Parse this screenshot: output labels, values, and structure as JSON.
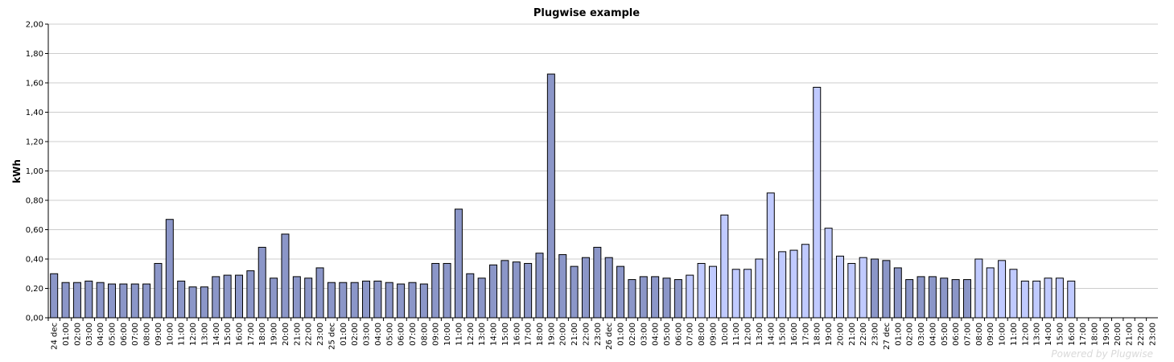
{
  "chart_data": {
    "type": "bar",
    "title": "Plugwise example",
    "xlabel": "",
    "ylabel": "kWh",
    "ylim": [
      0,
      2
    ],
    "yticks": [
      "0,00",
      "0,20",
      "0,40",
      "0,60",
      "0,80",
      "1,00",
      "1,20",
      "1,40",
      "1,60",
      "1,80",
      "2,00"
    ],
    "grid": true,
    "watermark": "Powered by Plugwise",
    "colors": {
      "dark": "#8b96c8",
      "light": "#c0caff",
      "outline": "#000000",
      "grid": "#cccccc"
    },
    "categories": [
      "24 dec",
      "01:00",
      "02:00",
      "03:00",
      "04:00",
      "05:00",
      "06:00",
      "07:00",
      "08:00",
      "09:00",
      "10:00",
      "11:00",
      "12:00",
      "13:00",
      "14:00",
      "15:00",
      "16:00",
      "17:00",
      "18:00",
      "19:00",
      "20:00",
      "21:00",
      "22:00",
      "23:00",
      "25 dec",
      "01:00",
      "02:00",
      "03:00",
      "04:00",
      "05:00",
      "06:00",
      "07:00",
      "08:00",
      "09:00",
      "10:00",
      "11:00",
      "12:00",
      "13:00",
      "14:00",
      "15:00",
      "16:00",
      "17:00",
      "18:00",
      "19:00",
      "20:00",
      "21:00",
      "22:00",
      "23:00",
      "26 dec",
      "01:00",
      "02:00",
      "03:00",
      "04:00",
      "05:00",
      "06:00",
      "07:00",
      "08:00",
      "09:00",
      "10:00",
      "11:00",
      "12:00",
      "13:00",
      "14:00",
      "15:00",
      "16:00",
      "17:00",
      "18:00",
      "19:00",
      "20:00",
      "21:00",
      "22:00",
      "23:00",
      "27 dec",
      "01:00",
      "02:00",
      "03:00",
      "04:00",
      "05:00",
      "06:00",
      "07:00",
      "08:00",
      "09:00",
      "10:00",
      "11:00",
      "12:00",
      "13:00",
      "14:00",
      "15:00",
      "16:00",
      "17:00",
      "18:00",
      "19:00",
      "20:00",
      "21:00",
      "22:00",
      "23:00"
    ],
    "series": [
      {
        "values": [
          0.3,
          0.24,
          0.24,
          0.25,
          0.24,
          0.23,
          0.23,
          0.23,
          0.23,
          0.37,
          0.67,
          0.25,
          0.21,
          0.21,
          0.28,
          0.29,
          0.29,
          0.32,
          0.48,
          0.27,
          0.57,
          0.28,
          0.27,
          0.34,
          0.24,
          0.24,
          0.24,
          0.25,
          0.25,
          0.24,
          0.23,
          0.24,
          0.23,
          0.37,
          0.37,
          0.74,
          0.3,
          0.27,
          0.36,
          0.39,
          0.38,
          0.37,
          0.44,
          1.66,
          0.43,
          0.35,
          0.41,
          0.48,
          0.41,
          0.35,
          0.26,
          0.28,
          0.28,
          0.27,
          0.26,
          0.29,
          0.37,
          0.35,
          0.7,
          0.33,
          0.33,
          0.4,
          0.85,
          0.45,
          0.46,
          0.5,
          1.57,
          0.61,
          0.42,
          0.37,
          0.41,
          0.4,
          0.39,
          0.34,
          0.26,
          0.28,
          0.28,
          0.27,
          0.26,
          0.26,
          0.4,
          0.34,
          0.39,
          0.33,
          0.25,
          0.25,
          0.27,
          0.27,
          0.25,
          0,
          0,
          0,
          0,
          0,
          0,
          0
        ]
      }
    ],
    "bar_shade": [
      "dark",
      "dark",
      "dark",
      "dark",
      "dark",
      "dark",
      "dark",
      "dark",
      "dark",
      "dark",
      "dark",
      "dark",
      "dark",
      "dark",
      "dark",
      "dark",
      "dark",
      "dark",
      "dark",
      "dark",
      "dark",
      "dark",
      "dark",
      "dark",
      "dark",
      "dark",
      "dark",
      "dark",
      "dark",
      "dark",
      "dark",
      "dark",
      "dark",
      "dark",
      "dark",
      "dark",
      "dark",
      "dark",
      "dark",
      "dark",
      "dark",
      "dark",
      "dark",
      "dark",
      "dark",
      "dark",
      "dark",
      "dark",
      "dark",
      "dark",
      "dark",
      "dark",
      "dark",
      "dark",
      "dark",
      "light",
      "light",
      "light",
      "light",
      "light",
      "light",
      "light",
      "light",
      "light",
      "light",
      "light",
      "light",
      "light",
      "light",
      "light",
      "light",
      "dark",
      "dark",
      "dark",
      "dark",
      "dark",
      "dark",
      "dark",
      "dark",
      "dark",
      "light",
      "light",
      "light",
      "light",
      "light",
      "light",
      "light",
      "light",
      "light",
      "light",
      "light",
      "light",
      "light",
      "light",
      "light",
      "light"
    ]
  }
}
